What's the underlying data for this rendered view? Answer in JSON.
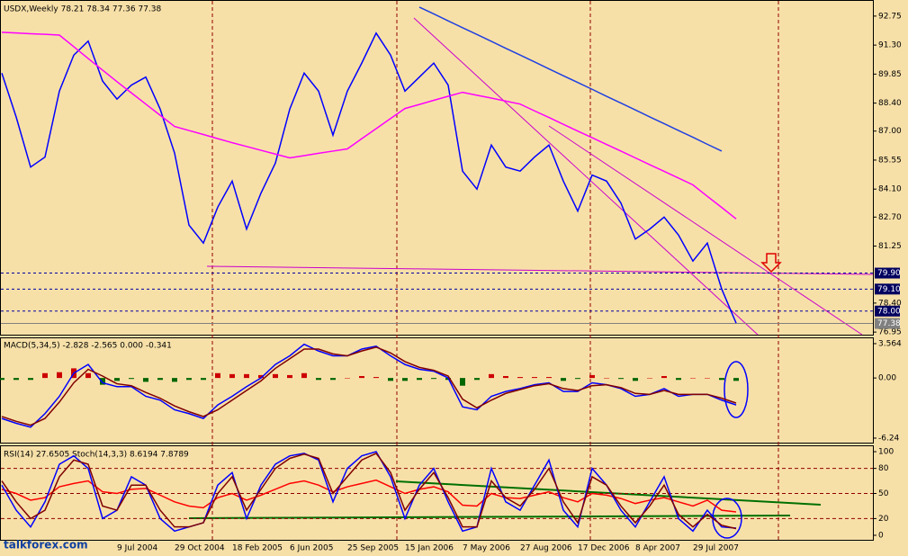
{
  "chart_data": [
    {
      "type": "line",
      "title": "USDX,Weekly  78.21 78.34 77.36 77.38",
      "ylim": [
        76.82,
        93.51
      ],
      "yticks": [
        92.75,
        {
          "value": 91.3,
          "label": "91.30"
        },
        89.85,
        {
          "value": 88.4,
          "label": "88.40"
        },
        {
          "value": 87,
          "label": "87.00"
        },
        85.55,
        {
          "value": 84.1,
          "label": "84.10"
        },
        {
          "value": 82.7,
          "label": "82.70"
        },
        81.25,
        {
          "value": 78.4,
          "label": "78.40"
        },
        76.95
      ],
      "levels": [
        {
          "value": 79.9,
          "label": "79.90"
        },
        {
          "value": 79.1,
          "label": "79.10"
        },
        {
          "value": 78,
          "label": "78.00"
        }
      ],
      "last_price": 77.38,
      "series": [
        {
          "color": "#0000ff",
          "values": [
            89.9,
            87.7,
            85.2,
            85.7,
            89.0,
            90.8,
            91.5,
            89.5,
            88.6,
            89.3,
            89.7,
            88.1,
            85.9,
            82.3,
            81.4,
            83.2,
            84.5,
            82.1,
            83.9,
            85.4,
            88.1,
            89.9,
            89.0,
            86.8,
            89.0,
            90.4,
            91.9,
            90.8,
            89.0,
            89.7,
            90.4,
            89.3,
            85.0,
            84.1,
            86.3,
            85.2,
            85.0,
            85.7,
            86.3,
            84.5,
            83.0,
            84.8,
            84.5,
            83.4,
            81.6,
            82.1,
            82.7,
            81.8,
            80.5,
            81.4,
            79.1,
            77.4
          ]
        },
        {
          "color": "#ff00ff",
          "values": [
            91.94,
            91.91,
            91.87,
            91.84,
            91.8,
            91.22,
            90.63,
            90.05,
            89.47,
            88.91,
            88.35,
            87.79,
            87.23,
            87.03,
            86.83,
            86.62,
            86.42,
            86.23,
            86.04,
            85.85,
            85.66,
            85.77,
            85.89,
            86.0,
            86.11,
            86.62,
            87.12,
            87.63,
            88.13,
            88.33,
            88.54,
            88.74,
            88.94,
            88.79,
            88.65,
            88.5,
            88.35,
            88.01,
            87.68,
            87.34,
            87.0,
            86.67,
            86.33,
            86.0,
            85.66,
            85.32,
            84.99,
            84.65,
            84.31,
            83.74,
            83.18,
            82.61
          ]
        },
        {
          "color": "#2040e0",
          "values": [
            null,
            null,
            null,
            null,
            null,
            null,
            null,
            null,
            null,
            null,
            null,
            null,
            null,
            null,
            null,
            null,
            null,
            null,
            null,
            null,
            null,
            null,
            null,
            null,
            null,
            null,
            null,
            null,
            null,
            93.2,
            92.86,
            92.51,
            92.17,
            91.83,
            91.49,
            91.14,
            90.8,
            90.46,
            90.11,
            89.77,
            89.43,
            89.09,
            88.74,
            88.4,
            88.06,
            87.71,
            87.37,
            87.03,
            86.69,
            86.34,
            86.0,
            null
          ]
        }
      ]
    },
    {
      "type": "line",
      "title": "MACD(5,34,5) -2.828 -2.565 0.000 -0.341",
      "ylim": [
        -6.71,
        4.12
      ],
      "yticks": [
        3.564,
        {
          "value": 0,
          "label": "0.00"
        },
        -6.24
      ],
      "series": [
        {
          "type": "bar",
          "color": "#cc0000",
          "negative_color": "#006600",
          "values": [
            -0.2,
            -0.2,
            -0.2,
            0.5,
            0.6,
            1.0,
            0.5,
            -0.7,
            -0.3,
            -0.1,
            -0.4,
            -0.2,
            -0.4,
            -0.2,
            -0.2,
            0.5,
            0.4,
            0.4,
            0.3,
            0.4,
            0.3,
            0.5,
            -0.2,
            -0.2,
            0,
            0.2,
            0.1,
            -0.3,
            -0.3,
            -0.2,
            -0.1,
            -0.2,
            -0.8,
            -0.2,
            0.4,
            0.2,
            0.1,
            0.1,
            0.1,
            -0.3,
            -0.1,
            0.3,
            0,
            -0.1,
            -0.3,
            0,
            0.2,
            -0.2,
            0,
            0,
            -0.2,
            -0.3
          ]
        },
        {
          "color": "#0000ff",
          "values": [
            -4.2,
            -4.7,
            -5.1,
            -3.7,
            -1.9,
            0.5,
            1.4,
            -0.5,
            -0.9,
            -0.9,
            -1.9,
            -2.3,
            -3.3,
            -3.7,
            -4.2,
            -2.8,
            -1.9,
            -0.9,
            0,
            1.4,
            2.3,
            3.5,
            2.8,
            2.3,
            2.3,
            3.0,
            3.3,
            2.3,
            1.4,
            0.9,
            0.7,
            0,
            -3.0,
            -3.3,
            -1.9,
            -1.4,
            -1.1,
            -0.7,
            -0.5,
            -1.4,
            -1.4,
            -0.5,
            -0.7,
            -1.1,
            -1.9,
            -1.7,
            -1.1,
            -1.9,
            -1.7,
            -1.7,
            -2.3,
            -2.8
          ]
        },
        {
          "color": "#800000",
          "values": [
            -4.0,
            -4.5,
            -4.9,
            -4.2,
            -2.5,
            -0.5,
            0.9,
            0.2,
            -0.6,
            -0.8,
            -1.5,
            -2.1,
            -2.9,
            -3.5,
            -4.0,
            -3.3,
            -2.3,
            -1.3,
            -0.3,
            1.0,
            2.0,
            3.0,
            3.0,
            2.5,
            2.3,
            2.8,
            3.2,
            2.6,
            1.7,
            1.1,
            0.8,
            0.2,
            -2.2,
            -3.1,
            -2.3,
            -1.6,
            -1.2,
            -0.8,
            -0.6,
            -1.1,
            -1.3,
            -0.8,
            -0.7,
            -1.0,
            -1.6,
            -1.7,
            -1.3,
            -1.7,
            -1.7,
            -1.7,
            -2.1,
            -2.6
          ]
        }
      ]
    },
    {
      "type": "line",
      "title": "RSI(14) 27.6505  Stoch(14,3,3) 8.6194 7.8789",
      "ylim": [
        -5.4,
        106.5
      ],
      "yticks": [
        100,
        80,
        50,
        20,
        0
      ],
      "grid": true,
      "categories": [
        null,
        null,
        null,
        null,
        null,
        null,
        null,
        null,
        "9 Jul 2004",
        null,
        null,
        null,
        "29 Oct 2004",
        null,
        null,
        null,
        "18 Feb 2005",
        null,
        null,
        null,
        "6 Jun 2005",
        null,
        null,
        null,
        "25 Sep 2005",
        null,
        null,
        null,
        "15 Jan 2006",
        null,
        null,
        null,
        "7 May 2006",
        null,
        null,
        null,
        "27 Aug 2006",
        null,
        null,
        null,
        "17 Dec 2006",
        null,
        null,
        null,
        "8 Apr 2007",
        null,
        null,
        null,
        "29 Jul 2007",
        null,
        null,
        null
      ],
      "series": [
        {
          "color": "#ff0000",
          "values": [
            55,
            50,
            42,
            45,
            58,
            62,
            65,
            52,
            50,
            55,
            56,
            48,
            40,
            35,
            33,
            45,
            50,
            42,
            48,
            55,
            62,
            65,
            60,
            52,
            58,
            62,
            66,
            58,
            50,
            55,
            58,
            52,
            36,
            35,
            50,
            45,
            44,
            48,
            52,
            45,
            40,
            50,
            48,
            44,
            38,
            42,
            45,
            40,
            35,
            42,
            30,
            28
          ]
        },
        {
          "color": "#0000ff",
          "values": [
            60,
            30,
            10,
            40,
            85,
            95,
            80,
            20,
            30,
            70,
            60,
            20,
            5,
            10,
            15,
            60,
            75,
            20,
            60,
            85,
            95,
            98,
            90,
            40,
            80,
            95,
            100,
            70,
            20,
            60,
            80,
            40,
            5,
            10,
            80,
            40,
            30,
            60,
            90,
            30,
            10,
            80,
            60,
            30,
            10,
            40,
            70,
            20,
            5,
            30,
            10,
            8.6
          ]
        },
        {
          "color": "#800000",
          "values": [
            65,
            40,
            20,
            30,
            70,
            90,
            85,
            35,
            30,
            60,
            60,
            30,
            10,
            10,
            15,
            50,
            70,
            30,
            55,
            80,
            92,
            97,
            92,
            50,
            70,
            90,
            98,
            75,
            30,
            55,
            75,
            45,
            10,
            10,
            65,
            45,
            35,
            55,
            80,
            40,
            15,
            70,
            60,
            35,
            15,
            35,
            60,
            25,
            10,
            25,
            12,
            7.9
          ]
        }
      ]
    }
  ],
  "watermark": "talkforex.com"
}
